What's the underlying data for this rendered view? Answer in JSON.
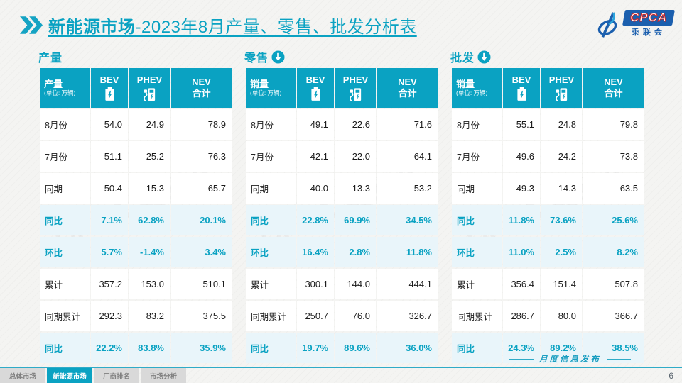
{
  "header": {
    "title_bold": "新能源市场",
    "title_rest": "-2023年8月产量、零售、批发分析表",
    "logo_text": "CPCA",
    "logo_sub": "乘联会"
  },
  "colors": {
    "accent": "#0aa2c2",
    "highlight_bg": "#e9f5fa"
  },
  "watermark_text": "CPCA 乘联会",
  "icons": [
    "chevrons-icon",
    "arrow-down-circle-icon",
    "battery-icon",
    "charger-icon"
  ],
  "sections": [
    {
      "title": "产量",
      "arrow": false,
      "measure_label": "产量",
      "measure_unit": "(单位: 万辆)",
      "columns": {
        "bev": "BEV",
        "phev": "PHEV",
        "nev_line1": "NEV",
        "nev_line2": "合计"
      },
      "rows": [
        {
          "label": "8月份",
          "values": [
            "54.0",
            "24.9",
            "78.9"
          ],
          "highlight": false
        },
        {
          "label": "7月份",
          "values": [
            "51.1",
            "25.2",
            "76.3"
          ],
          "highlight": false
        },
        {
          "label": "同期",
          "values": [
            "50.4",
            "15.3",
            "65.7"
          ],
          "highlight": false
        },
        {
          "label": "同比",
          "values": [
            "7.1%",
            "62.8%",
            "20.1%"
          ],
          "highlight": true
        },
        {
          "label": "环比",
          "values": [
            "5.7%",
            "-1.4%",
            "3.4%"
          ],
          "highlight": true
        },
        {
          "label": "累计",
          "values": [
            "357.2",
            "153.0",
            "510.1"
          ],
          "highlight": false
        },
        {
          "label": "同期累计",
          "values": [
            "292.3",
            "83.2",
            "375.5"
          ],
          "highlight": false
        },
        {
          "label": "同比",
          "values": [
            "22.2%",
            "83.8%",
            "35.9%"
          ],
          "highlight": true
        }
      ]
    },
    {
      "title": "零售",
      "arrow": true,
      "measure_label": "销量",
      "measure_unit": "(单位: 万辆)",
      "columns": {
        "bev": "BEV",
        "phev": "PHEV",
        "nev_line1": "NEV",
        "nev_line2": "合计"
      },
      "rows": [
        {
          "label": "8月份",
          "values": [
            "49.1",
            "22.6",
            "71.6"
          ],
          "highlight": false
        },
        {
          "label": "7月份",
          "values": [
            "42.1",
            "22.0",
            "64.1"
          ],
          "highlight": false
        },
        {
          "label": "同期",
          "values": [
            "40.0",
            "13.3",
            "53.2"
          ],
          "highlight": false
        },
        {
          "label": "同比",
          "values": [
            "22.8%",
            "69.9%",
            "34.5%"
          ],
          "highlight": true
        },
        {
          "label": "环比",
          "values": [
            "16.4%",
            "2.8%",
            "11.8%"
          ],
          "highlight": true
        },
        {
          "label": "累计",
          "values": [
            "300.1",
            "144.0",
            "444.1"
          ],
          "highlight": false
        },
        {
          "label": "同期累计",
          "values": [
            "250.7",
            "76.0",
            "326.7"
          ],
          "highlight": false
        },
        {
          "label": "同比",
          "values": [
            "19.7%",
            "89.6%",
            "36.0%"
          ],
          "highlight": true
        }
      ]
    },
    {
      "title": "批发",
      "arrow": true,
      "measure_label": "销量",
      "measure_unit": "(单位: 万辆)",
      "columns": {
        "bev": "BEV",
        "phev": "PHEV",
        "nev_line1": "NEV",
        "nev_line2": "合计"
      },
      "rows": [
        {
          "label": "8月份",
          "values": [
            "55.1",
            "24.8",
            "79.8"
          ],
          "highlight": false
        },
        {
          "label": "7月份",
          "values": [
            "49.6",
            "24.2",
            "73.8"
          ],
          "highlight": false
        },
        {
          "label": "同期",
          "values": [
            "49.3",
            "14.3",
            "63.5"
          ],
          "highlight": false
        },
        {
          "label": "同比",
          "values": [
            "11.8%",
            "73.6%",
            "25.6%"
          ],
          "highlight": true
        },
        {
          "label": "环比",
          "values": [
            "11.0%",
            "2.5%",
            "8.2%"
          ],
          "highlight": true
        },
        {
          "label": "累计",
          "values": [
            "356.4",
            "151.4",
            "507.8"
          ],
          "highlight": false
        },
        {
          "label": "同期累计",
          "values": [
            "286.7",
            "80.0",
            "366.7"
          ],
          "highlight": false
        },
        {
          "label": "同比",
          "values": [
            "24.3%",
            "89.2%",
            "38.5%"
          ],
          "highlight": true
        }
      ]
    }
  ],
  "footer": {
    "tabs": [
      {
        "label": "总体市场",
        "active": false
      },
      {
        "label": "新能源市场",
        "active": true
      },
      {
        "label": "厂商排名",
        "active": false
      },
      {
        "label": "市场分析",
        "active": false
      }
    ],
    "publish_label": "月度信息发布",
    "page_number": "6"
  }
}
